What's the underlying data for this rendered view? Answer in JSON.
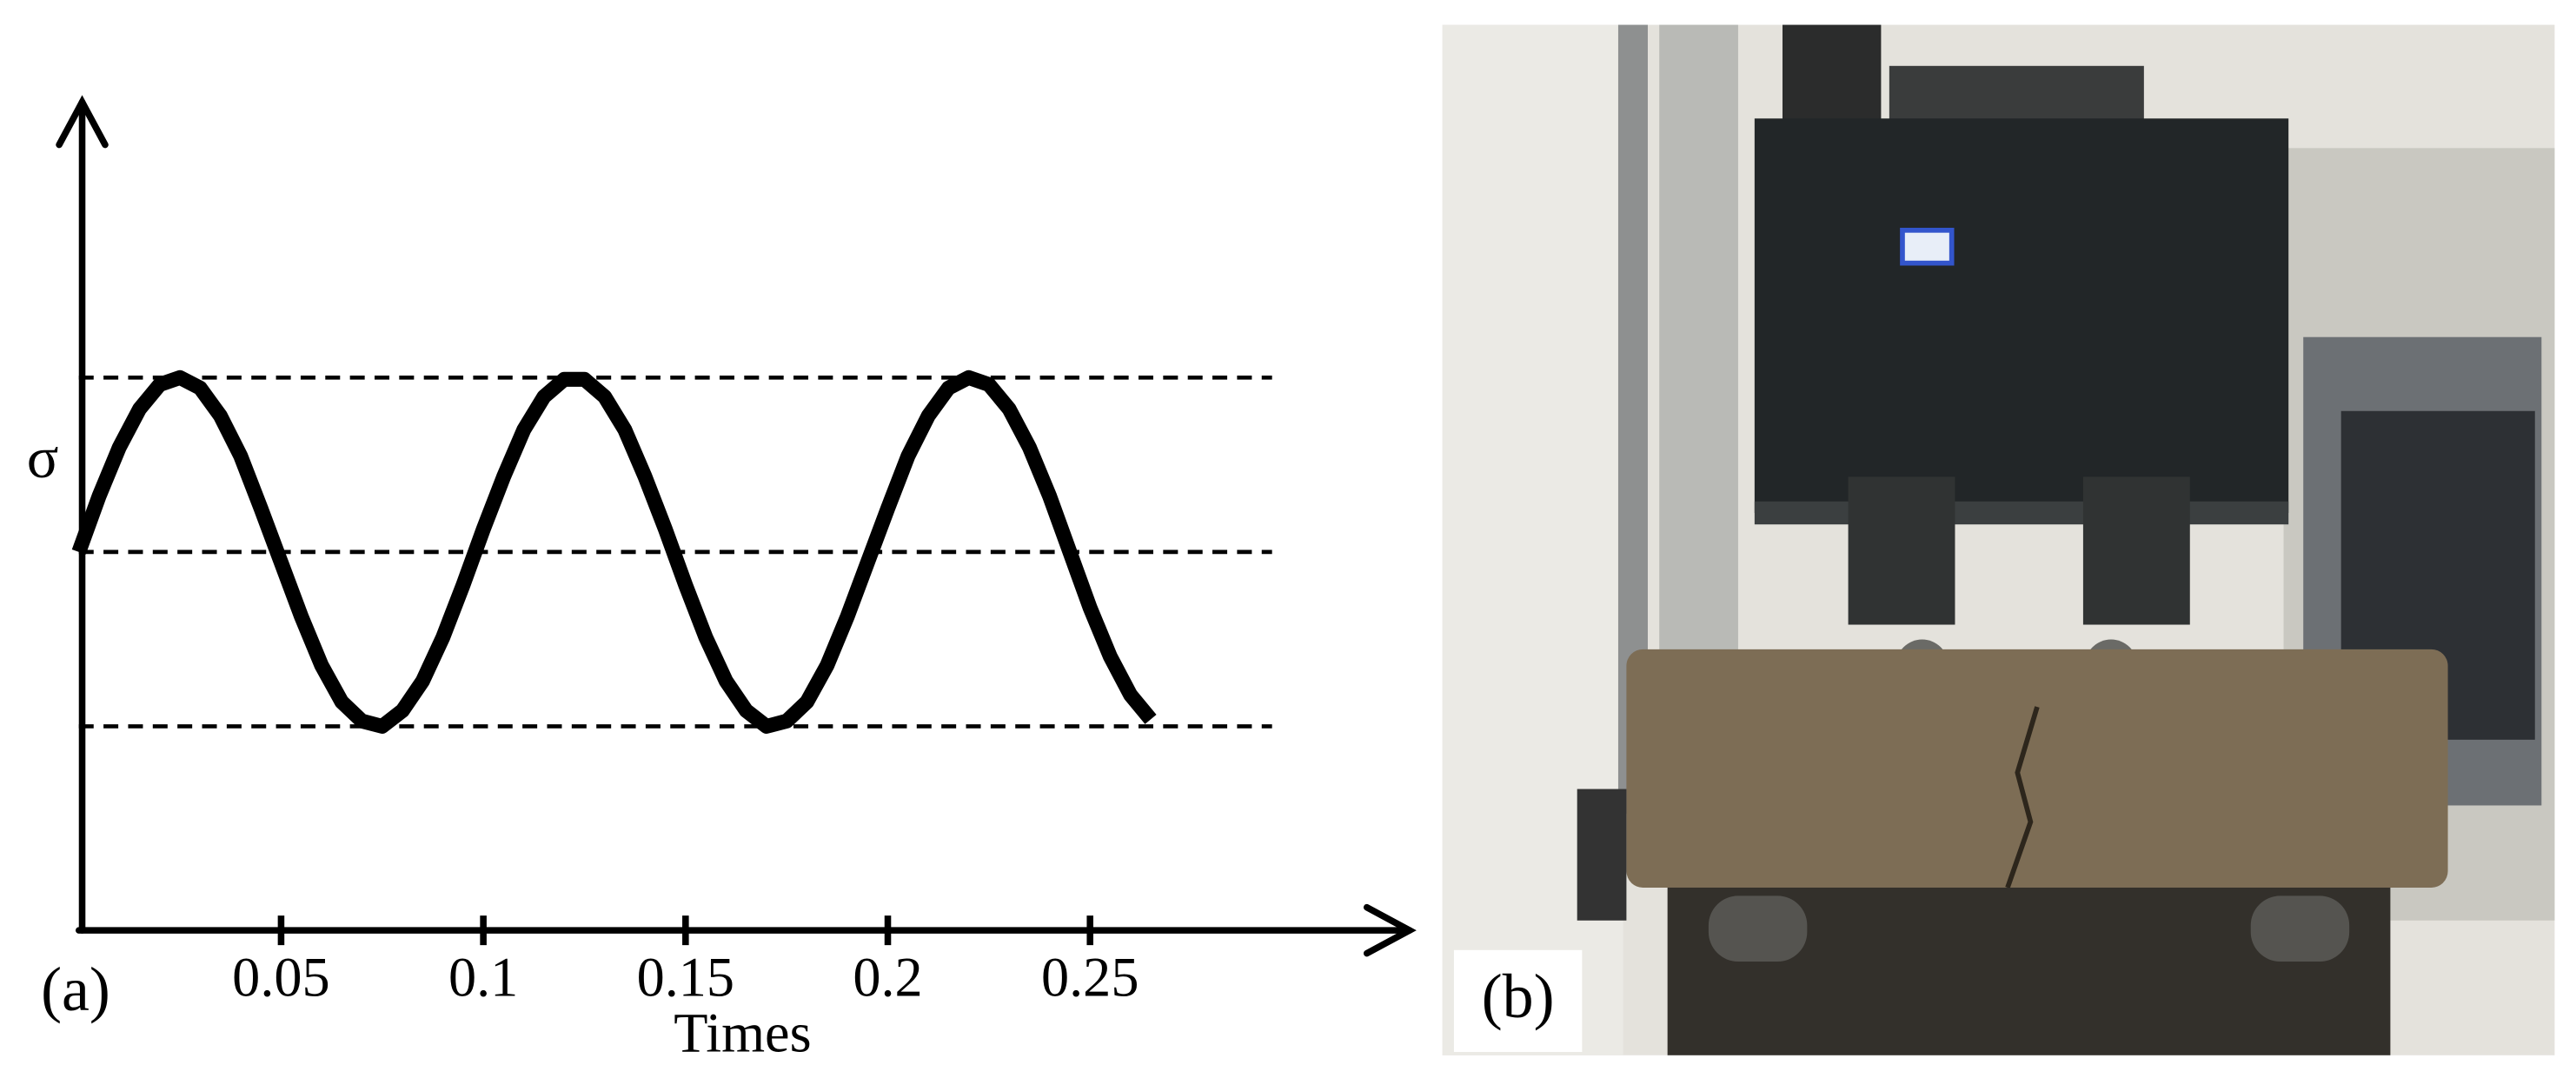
{
  "chart_data": {
    "type": "line",
    "y_label": "σ",
    "x_label": "Times",
    "panel_labels": [
      "(a)",
      "(b)"
    ],
    "x": [
      0,
      0.005,
      0.01,
      0.015,
      0.02,
      0.025,
      0.03,
      0.035,
      0.04,
      0.045,
      0.05,
      0.055,
      0.06,
      0.065,
      0.07,
      0.075,
      0.08,
      0.085,
      0.09,
      0.095,
      0.1,
      0.105,
      0.11,
      0.115,
      0.12,
      0.125,
      0.13,
      0.135,
      0.14,
      0.145,
      0.15,
      0.155,
      0.16,
      0.165,
      0.17,
      0.175,
      0.18,
      0.185,
      0.19,
      0.195,
      0.2,
      0.205,
      0.21,
      0.215,
      0.22,
      0.225,
      0.23,
      0.235,
      0.24,
      0.245,
      0.25,
      0.255,
      0.26,
      0.265
    ],
    "values": [
      0,
      0.32,
      0.6,
      0.82,
      0.96,
      1.0,
      0.94,
      0.78,
      0.55,
      0.25,
      -0.06,
      -0.37,
      -0.65,
      -0.86,
      -0.97,
      -1.0,
      -0.91,
      -0.74,
      -0.49,
      -0.19,
      0.13,
      0.43,
      0.7,
      0.89,
      0.99,
      0.99,
      0.89,
      0.7,
      0.43,
      0.13,
      -0.19,
      -0.49,
      -0.74,
      -0.91,
      -1.0,
      -0.97,
      -0.86,
      -0.65,
      -0.37,
      -0.06,
      0.25,
      0.55,
      0.78,
      0.94,
      1.0,
      0.96,
      0.82,
      0.6,
      0.32,
      0,
      -0.32,
      -0.6,
      -0.82,
      -0.96
    ],
    "color": "#000000",
    "reference_lines": [
      1,
      0,
      -1
    ],
    "reference_xlim": [
      0,
      0.295
    ],
    "xlim": [
      0,
      0.329
    ],
    "ylim": [
      -2.17,
      2.58
    ],
    "xticks": [
      0.05,
      0.1,
      0.15,
      0.2,
      0.25
    ]
  }
}
